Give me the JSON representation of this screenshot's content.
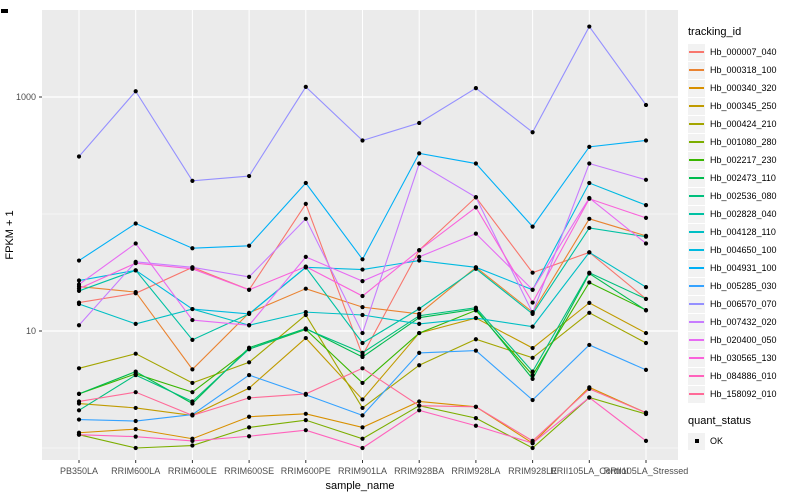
{
  "chart_data": {
    "type": "line",
    "title": "",
    "xlabel": "sample_name",
    "ylabel": "FPKM + 1",
    "y_scale": "log10",
    "y_ticks": [
      10,
      1000
    ],
    "y_minor_ticks": [
      1,
      100
    ],
    "legend_title": "tracking_id",
    "legend2_title": "quant_status",
    "legend2_items": [
      {
        "label": "OK",
        "key": "black-point"
      }
    ],
    "grid": true,
    "legend_position": "right",
    "categories": [
      "PB350LA",
      "RRIM600LA",
      "RRIM600LE",
      "RRIM600SE",
      "RRIM600PE",
      "RRIM901LA",
      "RRIM928BA",
      "RRIM928LA",
      "RRIM928LE",
      "RRII105LA_Control",
      "RRII105LA_Stressed"
    ],
    "series": [
      {
        "name": "Hb_000007_040",
        "color": "#F8766D",
        "values": [
          17.5,
          21,
          35,
          22.5,
          122,
          6.2,
          49,
          139,
          31.5,
          47,
          18.8
        ]
      },
      {
        "name": "Hb_000318_100",
        "color": "#EA8331",
        "values": [
          24,
          21.5,
          4.7,
          14.3,
          23,
          16,
          14,
          35,
          14.5,
          91,
          65
        ]
      },
      {
        "name": "Hb_000340_320",
        "color": "#D89000",
        "values": [
          1.35,
          1.45,
          1.2,
          1.85,
          1.96,
          1.5,
          2.5,
          2.25,
          1.1,
          3.3,
          2.0
        ]
      },
      {
        "name": "Hb_000345_250",
        "color": "#C09B00",
        "values": [
          2.4,
          2.2,
          1.9,
          3.25,
          8.7,
          2.6,
          9.6,
          12.9,
          7.15,
          17.4,
          9.6
        ]
      },
      {
        "name": "Hb_000424_210",
        "color": "#A3A500",
        "values": [
          4.8,
          6.4,
          3.6,
          5.4,
          13.7,
          2.2,
          5.1,
          8.5,
          5.9,
          14.3,
          7.9
        ]
      },
      {
        "name": "Hb_001080_280",
        "color": "#7CAE00",
        "values": [
          1.3,
          1.0,
          1.05,
          1.5,
          1.73,
          1.2,
          2.3,
          1.8,
          1.0,
          2.7,
          1.95
        ]
      },
      {
        "name": "Hb_002217_230",
        "color": "#39B600",
        "values": [
          2.9,
          4.3,
          3.0,
          7.0,
          10.3,
          3.6,
          9.6,
          15,
          4.2,
          26,
          15.1
        ]
      },
      {
        "name": "Hb_002473_110",
        "color": "#00BB4E",
        "values": [
          2.9,
          4.5,
          2.4,
          7.2,
          10.5,
          6.0,
          13,
          15.4,
          3.9,
          31,
          15
        ]
      },
      {
        "name": "Hb_002536_080",
        "color": "#00BF7D",
        "values": [
          2.1,
          4.2,
          2.5,
          7.0,
          10.4,
          6.5,
          13.5,
          15.8,
          4.5,
          31.5,
          18.8
        ]
      },
      {
        "name": "Hb_002828_040",
        "color": "#00C1A3",
        "values": [
          22,
          33,
          8.4,
          14,
          35,
          7.9,
          15.5,
          34,
          14,
          76,
          64
        ]
      },
      {
        "name": "Hb_004128_110",
        "color": "#00BFC4",
        "values": [
          17,
          11.5,
          15.4,
          11.2,
          14.5,
          13.7,
          11.5,
          12.9,
          10.9,
          47,
          23.7
        ]
      },
      {
        "name": "Hb_004650_100",
        "color": "#00BAE0",
        "values": [
          27,
          33,
          15.4,
          14,
          35,
          33.5,
          40,
          35,
          22.5,
          184,
          119
        ]
      },
      {
        "name": "Hb_004931_100",
        "color": "#00B0F6",
        "values": [
          40,
          83,
          51,
          53.5,
          184,
          41,
          330,
          270,
          78,
          375,
          425
        ]
      },
      {
        "name": "Hb_005285_030",
        "color": "#35A2FF",
        "values": [
          1.75,
          1.7,
          1.93,
          4.2,
          2.85,
          1.9,
          6.5,
          6.8,
          2.57,
          7.6,
          4.65
        ]
      },
      {
        "name": "Hb_006570_070",
        "color": "#9590FF",
        "values": [
          310,
          1120,
          192,
          211,
          1220,
          425,
          600,
          1190,
          500,
          4000,
          855
        ]
      },
      {
        "name": "Hb_007432_020",
        "color": "#C77CFF",
        "values": [
          11.2,
          39,
          35,
          29,
          91,
          9.6,
          270,
          139,
          14.3,
          270,
          196
        ]
      },
      {
        "name": "Hb_020400_050",
        "color": "#E76BF3",
        "values": [
          25,
          56,
          12.4,
          11.2,
          43,
          26.7,
          43,
          68,
          22.5,
          137,
          56
        ]
      },
      {
        "name": "Hb_030565_130",
        "color": "#FA62DB",
        "values": [
          23,
          38,
          34,
          22.5,
          35.5,
          19.9,
          49,
          114,
          17.5,
          135,
          92.6
        ]
      },
      {
        "name": "Hb_084886_010",
        "color": "#FF62BC",
        "values": [
          1.3,
          1.25,
          1.15,
          1.26,
          1.42,
          1.0,
          2.1,
          1.55,
          1.1,
          2.7,
          1.15
        ]
      },
      {
        "name": "Hb_158092_010",
        "color": "#FF6A98",
        "values": [
          2.5,
          3.0,
          1.9,
          2.68,
          2.9,
          4.8,
          2.3,
          2.25,
          1.15,
          3.2,
          2.0
        ]
      }
    ],
    "point_color": "#000000"
  },
  "colors": {
    "panel_background": "#EBEBEB",
    "gridline": "#FFFFFF",
    "axis_text": "#4D4D4D",
    "tick_mark": "#333333",
    "title_text": "#000000",
    "legend_key_background": "#F2F2F2"
  }
}
